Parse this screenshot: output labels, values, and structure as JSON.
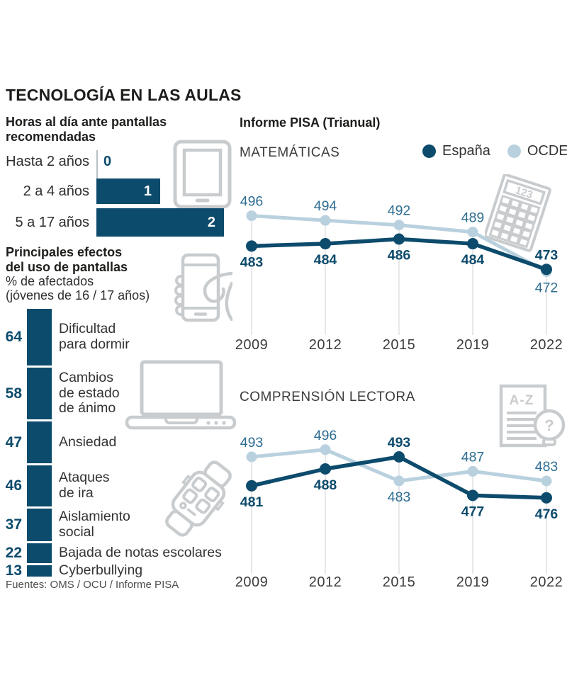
{
  "title": "TECNOLOGÍA EN LAS AULAS",
  "sources": "Fuentes: OMS / OCU / Informe PISA",
  "pisa": {
    "heading": "Informe PISA (Trianual)",
    "legend": {
      "espana": "España",
      "ocde": "OCDE"
    },
    "icons": {
      "calculator_label": "123",
      "doc_label": "A-Z",
      "bulb_label": "?"
    }
  },
  "chart_data": [
    {
      "type": "bar",
      "title": "Horas al día ante pantallas\nrecomendadas",
      "orientation": "horizontal",
      "unit": "horas",
      "categories": [
        "Hasta 2 años",
        "2 a 4 años",
        "5 a 17 años"
      ],
      "values": [
        0,
        1,
        2
      ]
    },
    {
      "type": "bar",
      "title": "Principales efectos\ndel uso de pantallas",
      "subtitle": "% de afectados",
      "subtitle2": "(jóvenes de 16 / 17 años)",
      "orientation": "vertical-stack",
      "unit": "%",
      "categories": [
        "Dificultad\npara dormir",
        "Cambios\nde estado\nde ánimo",
        "Ansiedad",
        "Ataques\nde ira",
        "Aislamiento\nsocial",
        "Bajada de notas escolares",
        "Cyberbullying"
      ],
      "values": [
        64,
        58,
        47,
        46,
        37,
        22,
        13
      ]
    },
    {
      "type": "line",
      "title": "MATEMÁTICAS",
      "x": [
        2009,
        2012,
        2015,
        2019,
        2022
      ],
      "series": [
        {
          "name": "España",
          "values": [
            483,
            484,
            486,
            484,
            473
          ]
        },
        {
          "name": "OCDE",
          "values": [
            496,
            494,
            492,
            489,
            472
          ]
        }
      ],
      "ylim": [
        470,
        498
      ],
      "grid": "vertical",
      "legend_position": "top-right"
    },
    {
      "type": "line",
      "title": "COMPRENSIÓN LECTORA",
      "x": [
        2009,
        2012,
        2015,
        2019,
        2022
      ],
      "series": [
        {
          "name": "España",
          "values": [
            481,
            488,
            493,
            477,
            476
          ]
        },
        {
          "name": "OCDE",
          "values": [
            493,
            496,
            483,
            487,
            483
          ]
        }
      ],
      "ylim": [
        474,
        498
      ],
      "grid": "vertical",
      "legend_position": "none"
    }
  ],
  "colors": {
    "dark_blue": "#0d4b6c",
    "light_blue": "#b9d1df",
    "ocde_label_blue": "#2e6d92",
    "icon_gray": "#c9ccce",
    "grid_gray": "#d9d9d9",
    "text_dark": "#1d1d1b",
    "text_gray": "#3c3c3c",
    "source_gray": "#4d4d4d"
  }
}
